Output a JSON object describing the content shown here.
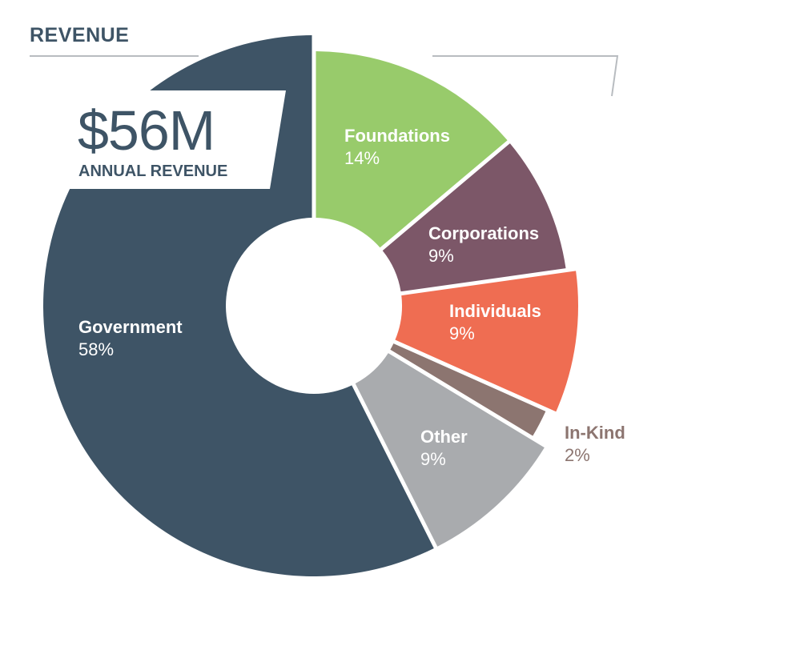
{
  "section_title": "REVENUE",
  "headline": {
    "figure": "$56M",
    "caption": "ANNUAL REVENUE"
  },
  "chart_data": {
    "type": "pie",
    "variant": "donut",
    "title": "",
    "slices": [
      {
        "label": "Foundations",
        "value": 14,
        "value_label": "14%",
        "color": "#98cb6b"
      },
      {
        "label": "Corporations",
        "value": 9,
        "value_label": "9%",
        "color": "#7c5768"
      },
      {
        "label": "Individuals",
        "value": 9,
        "value_label": "9%",
        "color": "#ef6d52"
      },
      {
        "label": "In-Kind",
        "value": 2,
        "value_label": "2%",
        "color": "#8c7570"
      },
      {
        "label": "Other",
        "value": 9,
        "value_label": "9%",
        "color": "#a9abae"
      },
      {
        "label": "Government",
        "value": 58,
        "value_label": "58%",
        "color": "#3e5466"
      }
    ]
  },
  "colors": {
    "text_dark": "#3e5466",
    "rule": "#b8bcc0",
    "white_label": "#ffffff",
    "inkind_label": "#8c7570"
  }
}
